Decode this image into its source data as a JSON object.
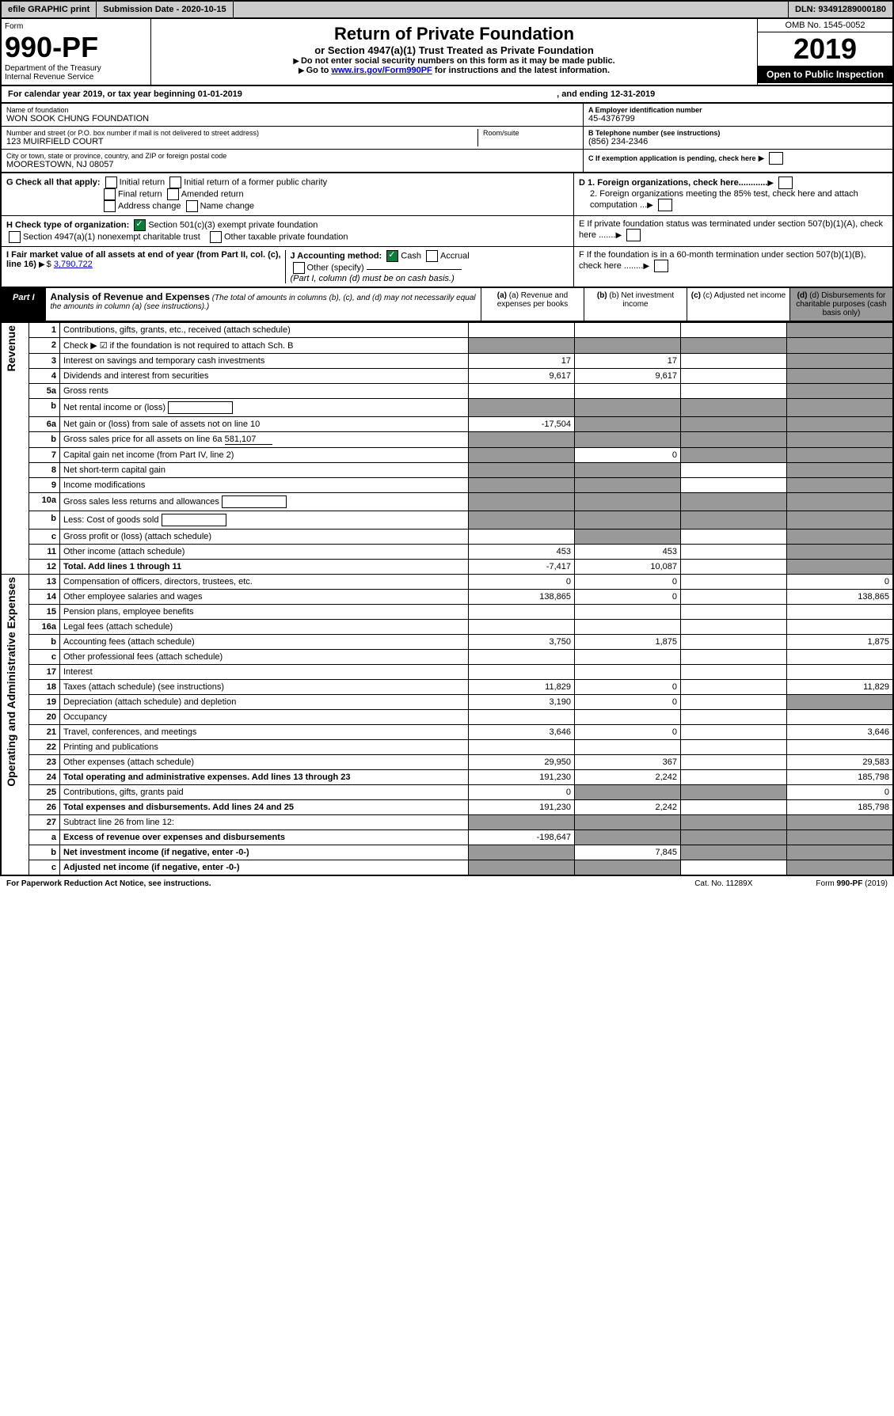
{
  "topbar": {
    "efile": "efile GRAPHIC print",
    "subdate_label": "Submission Date - 2020-10-15",
    "dln": "DLN: 93491289000180"
  },
  "header": {
    "form_word": "Form",
    "form_num": "990-PF",
    "dept": "Department of the Treasury",
    "irs": "Internal Revenue Service",
    "title": "Return of Private Foundation",
    "subtitle": "or Section 4947(a)(1) Trust Treated as Private Foundation",
    "instruct1": "Do not enter social security numbers on this form as it may be made public.",
    "instruct2_pre": "Go to ",
    "instruct2_link": "www.irs.gov/Form990PF",
    "instruct2_post": " for instructions and the latest information.",
    "omb": "OMB No. 1545-0052",
    "year": "2019",
    "open": "Open to Public Inspection"
  },
  "calyear": {
    "text1": "For calendar year 2019, or tax year beginning 01-01-2019",
    "text2": ", and ending 12-31-2019"
  },
  "id": {
    "name_label": "Name of foundation",
    "name": "WON SOOK CHUNG FOUNDATION",
    "addr_label": "Number and street (or P.O. box number if mail is not delivered to street address)",
    "addr": "123 MUIRFIELD COURT",
    "room_label": "Room/suite",
    "city_label": "City or town, state or province, country, and ZIP or foreign postal code",
    "city": "MOORESTOWN, NJ  08057",
    "ein_label": "A Employer identification number",
    "ein": "45-4376799",
    "tel_label": "B Telephone number (see instructions)",
    "tel": "(856) 234-2346",
    "c_label": "C If exemption application is pending, check here"
  },
  "g": {
    "label": "G Check all that apply:",
    "opts": [
      "Initial return",
      "Initial return of a former public charity",
      "Final return",
      "Amended return",
      "Address change",
      "Name change"
    ]
  },
  "h": {
    "label": "H Check type of organization:",
    "opt1": "Section 501(c)(3) exempt private foundation",
    "opt2": "Section 4947(a)(1) nonexempt charitable trust",
    "opt3": "Other taxable private foundation"
  },
  "i": {
    "label": "I Fair market value of all assets at end of year (from Part II, col. (c), line 16)",
    "val": "3,790,722"
  },
  "j": {
    "label": "J Accounting method:",
    "cash": "Cash",
    "accrual": "Accrual",
    "other": "Other (specify)",
    "note": "(Part I, column (d) must be on cash basis.)"
  },
  "d": {
    "d1": "D 1. Foreign organizations, check here............",
    "d2": "2. Foreign organizations meeting the 85% test, check here and attach computation ..."
  },
  "e": {
    "text": "E  If private foundation status was terminated under section 507(b)(1)(A), check here ......."
  },
  "f": {
    "text": "F  If the foundation is in a 60-month termination under section 507(b)(1)(B), check here ........"
  },
  "part1": {
    "label": "Part I",
    "title": "Analysis of Revenue and Expenses",
    "note": "(The total of amounts in columns (b), (c), and (d) may not necessarily equal the amounts in column (a) (see instructions).)",
    "cols": {
      "a": "(a) Revenue and expenses per books",
      "b": "(b) Net investment income",
      "c": "(c) Adjusted net income",
      "d": "(d) Disbursements for charitable purposes (cash basis only)"
    }
  },
  "sidelabels": {
    "rev": "Revenue",
    "exp": "Operating and Administrative Expenses"
  },
  "rows": [
    {
      "n": "1",
      "d": "Contributions, gifts, grants, etc., received (attach schedule)",
      "a": "",
      "b": "",
      "c": "",
      "dd": "",
      "gd": true
    },
    {
      "n": "2",
      "d": "Check ▶ ☑ if the foundation is not required to attach Sch. B",
      "a": "",
      "b": "",
      "c": "",
      "dd": "",
      "gd": true,
      "gb": true,
      "gc": true,
      "ga": true
    },
    {
      "n": "3",
      "d": "Interest on savings and temporary cash investments",
      "a": "17",
      "b": "17",
      "c": "",
      "dd": "",
      "gd": true
    },
    {
      "n": "4",
      "d": "Dividends and interest from securities",
      "a": "9,617",
      "b": "9,617",
      "c": "",
      "dd": "",
      "gd": true
    },
    {
      "n": "5a",
      "d": "Gross rents",
      "a": "",
      "b": "",
      "c": "",
      "dd": "",
      "gd": true
    },
    {
      "n": "b",
      "d": "Net rental income or (loss)",
      "a": "",
      "b": "",
      "c": "",
      "dd": "",
      "gd": true,
      "gb": true,
      "gc": true,
      "ga": true,
      "box": true
    },
    {
      "n": "6a",
      "d": "Net gain or (loss) from sale of assets not on line 10",
      "a": "-17,504",
      "b": "",
      "c": "",
      "dd": "",
      "gd": true,
      "gb": true,
      "gc": true
    },
    {
      "n": "b",
      "d": "Gross sales price for all assets on line 6a",
      "a": "",
      "b": "",
      "c": "",
      "dd": "",
      "gd": true,
      "gb": true,
      "gc": true,
      "ga": true,
      "val": "581,107"
    },
    {
      "n": "7",
      "d": "Capital gain net income (from Part IV, line 2)",
      "a": "",
      "b": "0",
      "c": "",
      "dd": "",
      "gd": true,
      "ga": true,
      "gc": true
    },
    {
      "n": "8",
      "d": "Net short-term capital gain",
      "a": "",
      "b": "",
      "c": "",
      "dd": "",
      "gd": true,
      "ga": true,
      "gb": true
    },
    {
      "n": "9",
      "d": "Income modifications",
      "a": "",
      "b": "",
      "c": "",
      "dd": "",
      "gd": true,
      "ga": true,
      "gb": true
    },
    {
      "n": "10a",
      "d": "Gross sales less returns and allowances",
      "a": "",
      "b": "",
      "c": "",
      "dd": "",
      "gd": true,
      "gb": true,
      "gc": true,
      "ga": true,
      "box": true
    },
    {
      "n": "b",
      "d": "Less: Cost of goods sold",
      "a": "",
      "b": "",
      "c": "",
      "dd": "",
      "gd": true,
      "gb": true,
      "gc": true,
      "ga": true,
      "box": true
    },
    {
      "n": "c",
      "d": "Gross profit or (loss) (attach schedule)",
      "a": "",
      "b": "",
      "c": "",
      "dd": "",
      "gd": true,
      "gb": true
    },
    {
      "n": "11",
      "d": "Other income (attach schedule)",
      "a": "453",
      "b": "453",
      "c": "",
      "dd": "",
      "gd": true
    },
    {
      "n": "12",
      "d": "Total. Add lines 1 through 11",
      "a": "-7,417",
      "b": "10,087",
      "c": "",
      "dd": "",
      "gd": true,
      "bold": true
    },
    {
      "n": "13",
      "d": "Compensation of officers, directors, trustees, etc.",
      "a": "0",
      "b": "0",
      "c": "",
      "dd": "0"
    },
    {
      "n": "14",
      "d": "Other employee salaries and wages",
      "a": "138,865",
      "b": "0",
      "c": "",
      "dd": "138,865"
    },
    {
      "n": "15",
      "d": "Pension plans, employee benefits",
      "a": "",
      "b": "",
      "c": "",
      "dd": ""
    },
    {
      "n": "16a",
      "d": "Legal fees (attach schedule)",
      "a": "",
      "b": "",
      "c": "",
      "dd": ""
    },
    {
      "n": "b",
      "d": "Accounting fees (attach schedule)",
      "a": "3,750",
      "b": "1,875",
      "c": "",
      "dd": "1,875"
    },
    {
      "n": "c",
      "d": "Other professional fees (attach schedule)",
      "a": "",
      "b": "",
      "c": "",
      "dd": ""
    },
    {
      "n": "17",
      "d": "Interest",
      "a": "",
      "b": "",
      "c": "",
      "dd": ""
    },
    {
      "n": "18",
      "d": "Taxes (attach schedule) (see instructions)",
      "a": "11,829",
      "b": "0",
      "c": "",
      "dd": "11,829"
    },
    {
      "n": "19",
      "d": "Depreciation (attach schedule) and depletion",
      "a": "3,190",
      "b": "0",
      "c": "",
      "dd": "",
      "gd": true
    },
    {
      "n": "20",
      "d": "Occupancy",
      "a": "",
      "b": "",
      "c": "",
      "dd": ""
    },
    {
      "n": "21",
      "d": "Travel, conferences, and meetings",
      "a": "3,646",
      "b": "0",
      "c": "",
      "dd": "3,646"
    },
    {
      "n": "22",
      "d": "Printing and publications",
      "a": "",
      "b": "",
      "c": "",
      "dd": ""
    },
    {
      "n": "23",
      "d": "Other expenses (attach schedule)",
      "a": "29,950",
      "b": "367",
      "c": "",
      "dd": "29,583"
    },
    {
      "n": "24",
      "d": "Total operating and administrative expenses. Add lines 13 through 23",
      "a": "191,230",
      "b": "2,242",
      "c": "",
      "dd": "185,798",
      "bold": true
    },
    {
      "n": "25",
      "d": "Contributions, gifts, grants paid",
      "a": "0",
      "b": "",
      "c": "",
      "dd": "0",
      "gb": true,
      "gc": true
    },
    {
      "n": "26",
      "d": "Total expenses and disbursements. Add lines 24 and 25",
      "a": "191,230",
      "b": "2,242",
      "c": "",
      "dd": "185,798",
      "bold": true
    },
    {
      "n": "27",
      "d": "Subtract line 26 from line 12:",
      "a": "",
      "b": "",
      "c": "",
      "dd": "",
      "ga": true,
      "gb": true,
      "gc": true,
      "gd": true
    },
    {
      "n": "a",
      "d": "Excess of revenue over expenses and disbursements",
      "a": "-198,647",
      "b": "",
      "c": "",
      "dd": "",
      "gb": true,
      "gc": true,
      "gd": true,
      "bold": true
    },
    {
      "n": "b",
      "d": "Net investment income (if negative, enter -0-)",
      "a": "",
      "b": "7,845",
      "c": "",
      "dd": "",
      "ga": true,
      "gc": true,
      "gd": true,
      "bold": true
    },
    {
      "n": "c",
      "d": "Adjusted net income (if negative, enter -0-)",
      "a": "",
      "b": "",
      "c": "",
      "dd": "",
      "ga": true,
      "gb": true,
      "gd": true,
      "bold": true
    }
  ],
  "footer": {
    "left": "For Paperwork Reduction Act Notice, see instructions.",
    "mid": "Cat. No. 11289X",
    "right": "Form 990-PF (2019)"
  }
}
